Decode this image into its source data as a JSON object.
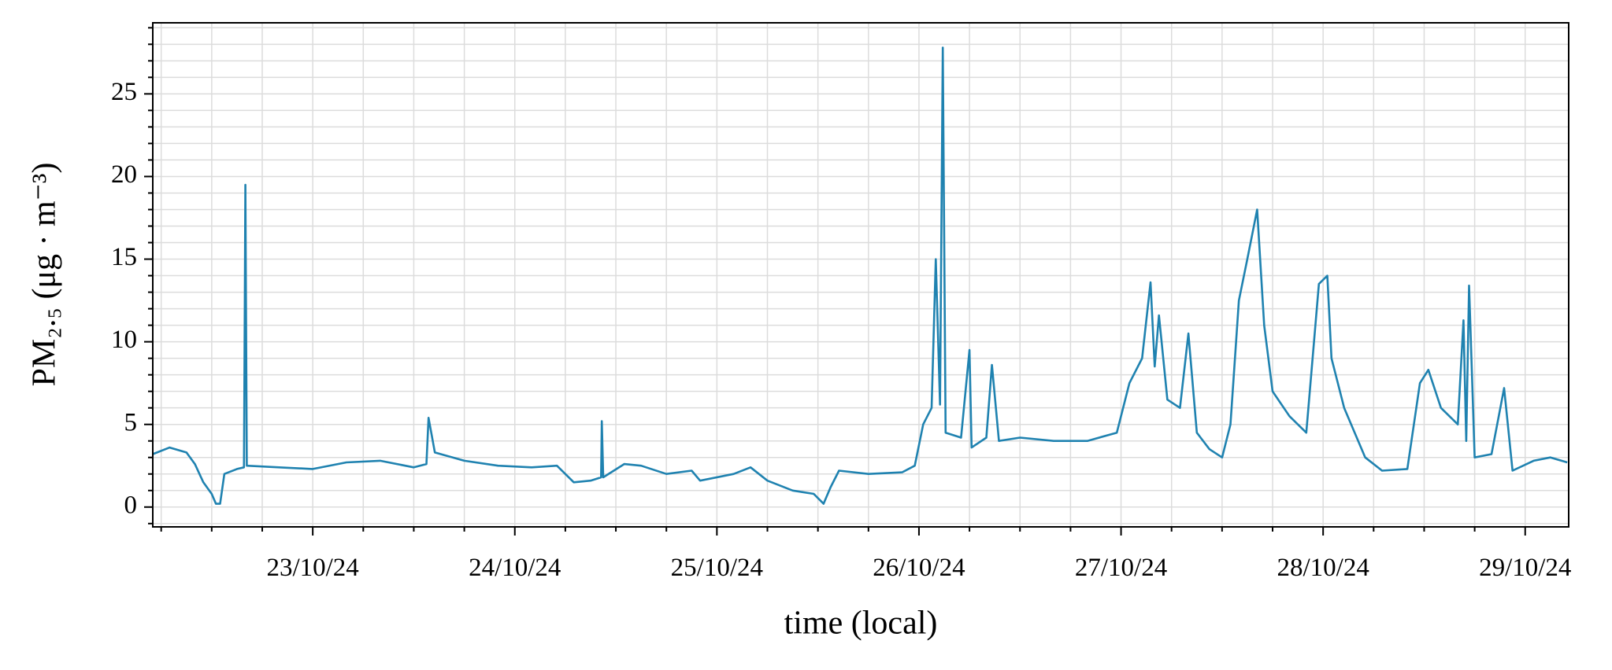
{
  "chart_data": {
    "type": "line",
    "xlabel": "time (local)",
    "ylabel": "PM₂.₅ (μg · m⁻³)",
    "xlim": [
      "2024-10-22T05:00",
      "2024-10-29T05:10"
    ],
    "xticks": [
      {
        "value": "2024-10-23T00:00",
        "label": "23/10/24"
      },
      {
        "value": "2024-10-24T00:00",
        "label": "24/10/24"
      },
      {
        "value": "2024-10-25T00:00",
        "label": "25/10/24"
      },
      {
        "value": "2024-10-26T00:00",
        "label": "26/10/24"
      },
      {
        "value": "2024-10-27T00:00",
        "label": "27/10/24"
      },
      {
        "value": "2024-10-28T00:00",
        "label": "28/10/24"
      },
      {
        "value": "2024-10-29T00:00",
        "label": "29/10/24"
      }
    ],
    "xminorticks": [
      "2024-10-22T06:00",
      "2024-10-22T12:00",
      "2024-10-22T18:00",
      "2024-10-23T06:00",
      "2024-10-23T12:00",
      "2024-10-23T18:00",
      "2024-10-24T06:00",
      "2024-10-24T12:00",
      "2024-10-24T18:00",
      "2024-10-25T06:00",
      "2024-10-25T12:00",
      "2024-10-25T18:00",
      "2024-10-26T06:00",
      "2024-10-26T12:00",
      "2024-10-26T18:00",
      "2024-10-27T06:00",
      "2024-10-27T12:00",
      "2024-10-27T18:00",
      "2024-10-28T06:00",
      "2024-10-28T12:00",
      "2024-10-28T18:00"
    ],
    "ylim": [
      -1.2,
      29.3
    ],
    "yticks": [
      0,
      5,
      10,
      15,
      20,
      25
    ],
    "yminorticks": [
      -1,
      1,
      2,
      3,
      4,
      6,
      7,
      8,
      9,
      11,
      12,
      13,
      14,
      16,
      17,
      18,
      19,
      21,
      22,
      23,
      24,
      26,
      27,
      28,
      29
    ],
    "grid": true,
    "x": [
      "2024-10-22T05:00",
      "2024-10-22T07:00",
      "2024-10-22T09:00",
      "2024-10-22T10:00",
      "2024-10-22T11:00",
      "2024-10-22T12:00",
      "2024-10-22T12:30",
      "2024-10-22T13:00",
      "2024-10-22T13:30",
      "2024-10-22T15:00",
      "2024-10-22T15:50",
      "2024-10-22T16:00",
      "2024-10-22T16:10",
      "2024-10-22T20:00",
      "2024-10-23T00:00",
      "2024-10-23T04:00",
      "2024-10-23T08:00",
      "2024-10-23T12:00",
      "2024-10-23T13:30",
      "2024-10-23T13:45",
      "2024-10-23T14:30",
      "2024-10-23T18:00",
      "2024-10-23T22:00",
      "2024-10-24T02:00",
      "2024-10-24T05:00",
      "2024-10-24T07:00",
      "2024-10-24T09:00",
      "2024-10-24T10:15",
      "2024-10-24T10:20",
      "2024-10-24T10:30",
      "2024-10-24T13:00",
      "2024-10-24T15:00",
      "2024-10-24T18:00",
      "2024-10-24T21:00",
      "2024-10-24T22:00",
      "2024-10-25T02:00",
      "2024-10-25T04:00",
      "2024-10-25T06:00",
      "2024-10-25T09:00",
      "2024-10-25T11:30",
      "2024-10-25T12:40",
      "2024-10-25T13:30",
      "2024-10-25T14:30",
      "2024-10-25T18:00",
      "2024-10-25T22:00",
      "2024-10-25T23:30",
      "2024-10-26T00:30",
      "2024-10-26T01:30",
      "2024-10-26T02:00",
      "2024-10-26T02:30",
      "2024-10-26T02:50",
      "2024-10-26T03:10",
      "2024-10-26T05:00",
      "2024-10-26T06:00",
      "2024-10-26T06:15",
      "2024-10-26T08:00",
      "2024-10-26T08:40",
      "2024-10-26T09:30",
      "2024-10-26T12:00",
      "2024-10-26T16:00",
      "2024-10-26T20:00",
      "2024-10-26T23:30",
      "2024-10-27T01:00",
      "2024-10-27T02:30",
      "2024-10-27T03:30",
      "2024-10-27T04:00",
      "2024-10-27T04:30",
      "2024-10-27T05:30",
      "2024-10-27T07:00",
      "2024-10-27T08:00",
      "2024-10-27T09:00",
      "2024-10-27T10:30",
      "2024-10-27T12:00",
      "2024-10-27T13:00",
      "2024-10-27T14:00",
      "2024-10-27T15:00",
      "2024-10-27T16:10",
      "2024-10-27T17:00",
      "2024-10-27T18:00",
      "2024-10-27T20:00",
      "2024-10-27T22:00",
      "2024-10-27T23:30",
      "2024-10-28T00:30",
      "2024-10-28T01:00",
      "2024-10-28T02:30",
      "2024-10-28T05:00",
      "2024-10-28T07:00",
      "2024-10-28T10:00",
      "2024-10-28T11:30",
      "2024-10-28T12:30",
      "2024-10-28T14:00",
      "2024-10-28T16:00",
      "2024-10-28T16:40",
      "2024-10-28T17:00",
      "2024-10-28T17:20",
      "2024-10-28T18:00",
      "2024-10-28T20:00",
      "2024-10-28T21:30",
      "2024-10-28T22:30",
      "2024-10-29T01:00",
      "2024-10-29T03:00",
      "2024-10-29T05:00"
    ],
    "series": [
      {
        "color": "#1f82b0",
        "values": [
          3.2,
          3.6,
          3.3,
          2.6,
          1.5,
          0.8,
          0.2,
          0.2,
          2.0,
          2.3,
          2.4,
          19.5,
          2.5,
          2.4,
          2.3,
          2.7,
          2.8,
          2.4,
          2.6,
          5.4,
          3.3,
          2.8,
          2.5,
          2.4,
          2.5,
          1.5,
          1.6,
          1.8,
          5.2,
          1.8,
          2.6,
          2.5,
          2.0,
          2.2,
          1.6,
          2.0,
          2.4,
          1.6,
          1.0,
          0.8,
          0.2,
          1.2,
          2.2,
          2.0,
          2.1,
          2.5,
          5.0,
          6.0,
          15.0,
          6.2,
          27.8,
          4.5,
          4.2,
          9.5,
          3.6,
          4.2,
          8.6,
          4.0,
          4.2,
          4.0,
          4.0,
          4.5,
          7.5,
          9.0,
          13.6,
          8.5,
          11.6,
          6.5,
          6.0,
          10.5,
          4.5,
          3.5,
          3.0,
          5.0,
          12.5,
          15.0,
          18.0,
          11.0,
          7.0,
          5.5,
          4.5,
          13.5,
          14.0,
          9.0,
          6.0,
          3.0,
          2.2,
          2.3,
          7.5,
          8.3,
          6.0,
          5.0,
          11.3,
          4.0,
          13.4,
          3.0,
          3.2,
          7.2,
          2.2,
          2.8,
          3.0,
          2.7
        ]
      }
    ]
  }
}
